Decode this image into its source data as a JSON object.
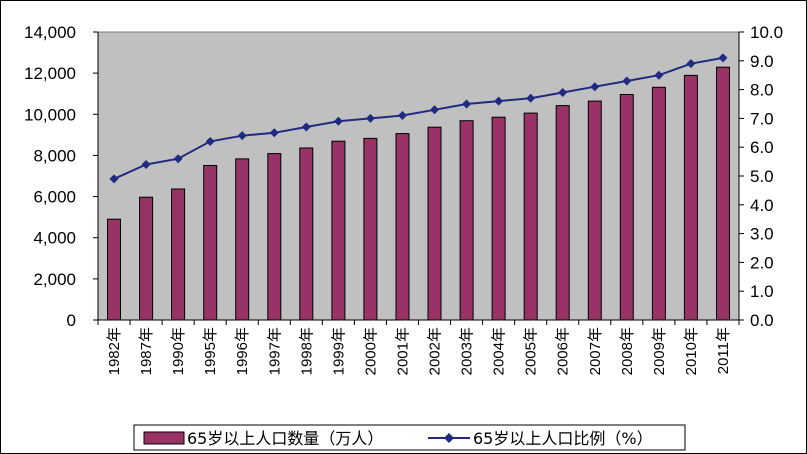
{
  "chart_data": {
    "type": "bar",
    "categories": [
      "1982年",
      "1987年",
      "1990年",
      "1995年",
      "1996年",
      "1997年",
      "1998年",
      "1999年",
      "2000年",
      "2001年",
      "2002年",
      "2003年",
      "2004年",
      "2005年",
      "2006年",
      "2007年",
      "2008年",
      "2009年",
      "2010年",
      "2011年"
    ],
    "series": [
      {
        "name": "65岁以上人口数量（万人）",
        "type": "bar",
        "axis": "left",
        "color": "#993366",
        "values": [
          4900,
          5970,
          6370,
          7510,
          7830,
          8090,
          8360,
          8690,
          8830,
          9060,
          9370,
          9690,
          9860,
          10060,
          10420,
          10640,
          10960,
          11310,
          11890,
          12290
        ]
      },
      {
        "name": "65岁以上人口比例（%）",
        "type": "line",
        "axis": "right",
        "color": "#1F2A80",
        "values": [
          4.9,
          5.4,
          5.6,
          6.2,
          6.4,
          6.5,
          6.7,
          6.9,
          7.0,
          7.1,
          7.3,
          7.5,
          7.6,
          7.7,
          7.9,
          8.1,
          8.3,
          8.5,
          8.9,
          9.1
        ]
      }
    ],
    "y_left": {
      "min": 0,
      "max": 14000,
      "ticks": [
        0,
        2000,
        4000,
        6000,
        8000,
        10000,
        12000,
        14000
      ],
      "tick_labels": [
        "0",
        "2,000",
        "4,000",
        "6,000",
        "8,000",
        "10,000",
        "12,000",
        "14,000"
      ]
    },
    "y_right": {
      "min": 0,
      "max": 10,
      "ticks": [
        0,
        1,
        2,
        3,
        4,
        5,
        6,
        7,
        8,
        9,
        10
      ],
      "tick_labels": [
        "0.0",
        "1.0",
        "2.0",
        "3.0",
        "4.0",
        "5.0",
        "6.0",
        "7.0",
        "8.0",
        "9.0",
        "10.0"
      ]
    },
    "grid": false,
    "plot_background": "#C0C0C0",
    "legend_position": "bottom"
  }
}
